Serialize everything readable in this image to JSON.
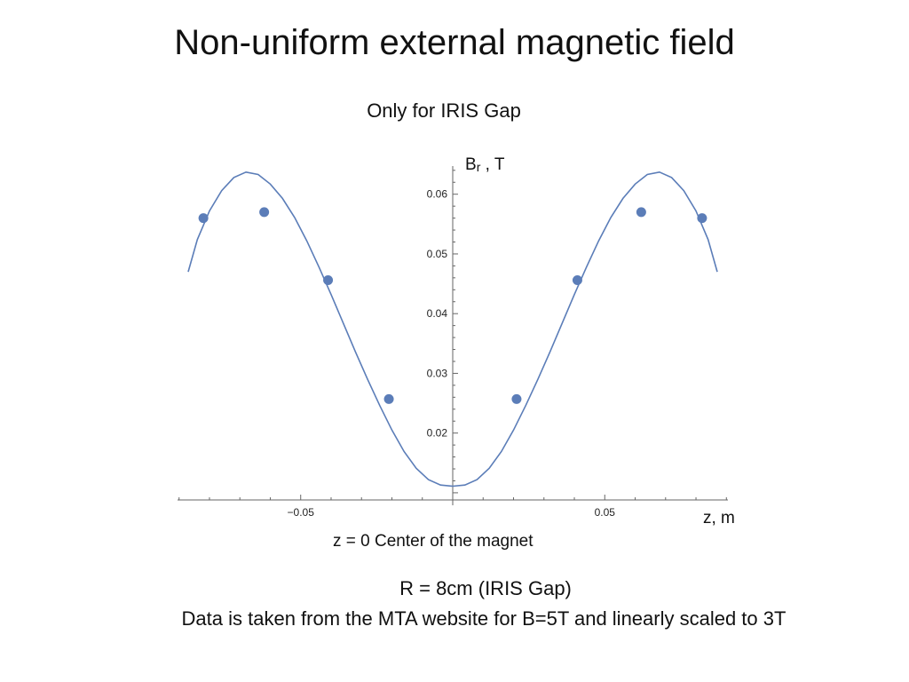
{
  "slide": {
    "title": "Non-uniform external magnetic field",
    "subtitle": "Only for IRIS Gap",
    "caption_line1": "R = 8cm (IRIS Gap)",
    "caption_line2": "Data is taken from the MTA website for B=5T and linearly scaled to 3T"
  },
  "chart_data": {
    "type": "scatter",
    "title": "",
    "xlabel": "z, m",
    "ylabel_main": "B",
    "ylabel_sub": "r",
    "ylabel_suffix": " , T",
    "below_axis_note": "z = 0 Center of the magnet",
    "xlim": [
      -0.0905,
      0.0905
    ],
    "ylim": [
      0.0085,
      0.0665
    ],
    "x_ticks": [
      {
        "value": -0.05,
        "label": "−0.05"
      },
      {
        "value": 0.05,
        "label": "0.05"
      }
    ],
    "y_ticks": [
      {
        "value": 0.02,
        "label": "0.02"
      },
      {
        "value": 0.03,
        "label": "0.03"
      },
      {
        "value": 0.04,
        "label": "0.04"
      },
      {
        "value": 0.05,
        "label": "0.05"
      },
      {
        "value": 0.06,
        "label": "0.06"
      }
    ],
    "series": [
      {
        "name": "data points",
        "kind": "points",
        "color": "#5b7db8",
        "x": [
          -0.082,
          -0.062,
          -0.041,
          -0.021,
          0.021,
          0.041,
          0.062,
          0.082
        ],
        "y": [
          0.056,
          0.057,
          0.0456,
          0.0257,
          0.0257,
          0.0456,
          0.057,
          0.056
        ]
      },
      {
        "name": "fit curve",
        "kind": "line",
        "color": "#5b7db8",
        "x": [
          -0.087,
          -0.084,
          -0.08,
          -0.076,
          -0.072,
          -0.068,
          -0.064,
          -0.06,
          -0.056,
          -0.052,
          -0.048,
          -0.044,
          -0.04,
          -0.036,
          -0.032,
          -0.028,
          -0.024,
          -0.02,
          -0.016,
          -0.012,
          -0.008,
          -0.004,
          0.0,
          0.004,
          0.008,
          0.012,
          0.016,
          0.02,
          0.024,
          0.028,
          0.032,
          0.036,
          0.04,
          0.044,
          0.048,
          0.052,
          0.056,
          0.06,
          0.064,
          0.068,
          0.072,
          0.076,
          0.08,
          0.084,
          0.087
        ],
        "y": [
          0.047,
          0.0524,
          0.0572,
          0.0606,
          0.0628,
          0.0637,
          0.0633,
          0.0617,
          0.0593,
          0.0561,
          0.0522,
          0.0478,
          0.0432,
          0.0384,
          0.0336,
          0.029,
          0.0246,
          0.0205,
          0.0169,
          0.0141,
          0.0122,
          0.0113,
          0.0111,
          0.0113,
          0.0122,
          0.0141,
          0.0169,
          0.0205,
          0.0246,
          0.029,
          0.0336,
          0.0384,
          0.0432,
          0.0478,
          0.0522,
          0.0561,
          0.0593,
          0.0617,
          0.0633,
          0.0637,
          0.0628,
          0.0606,
          0.0572,
          0.0524,
          0.047
        ]
      }
    ],
    "grid": false,
    "legend": "none",
    "axis_color": "#666666"
  }
}
